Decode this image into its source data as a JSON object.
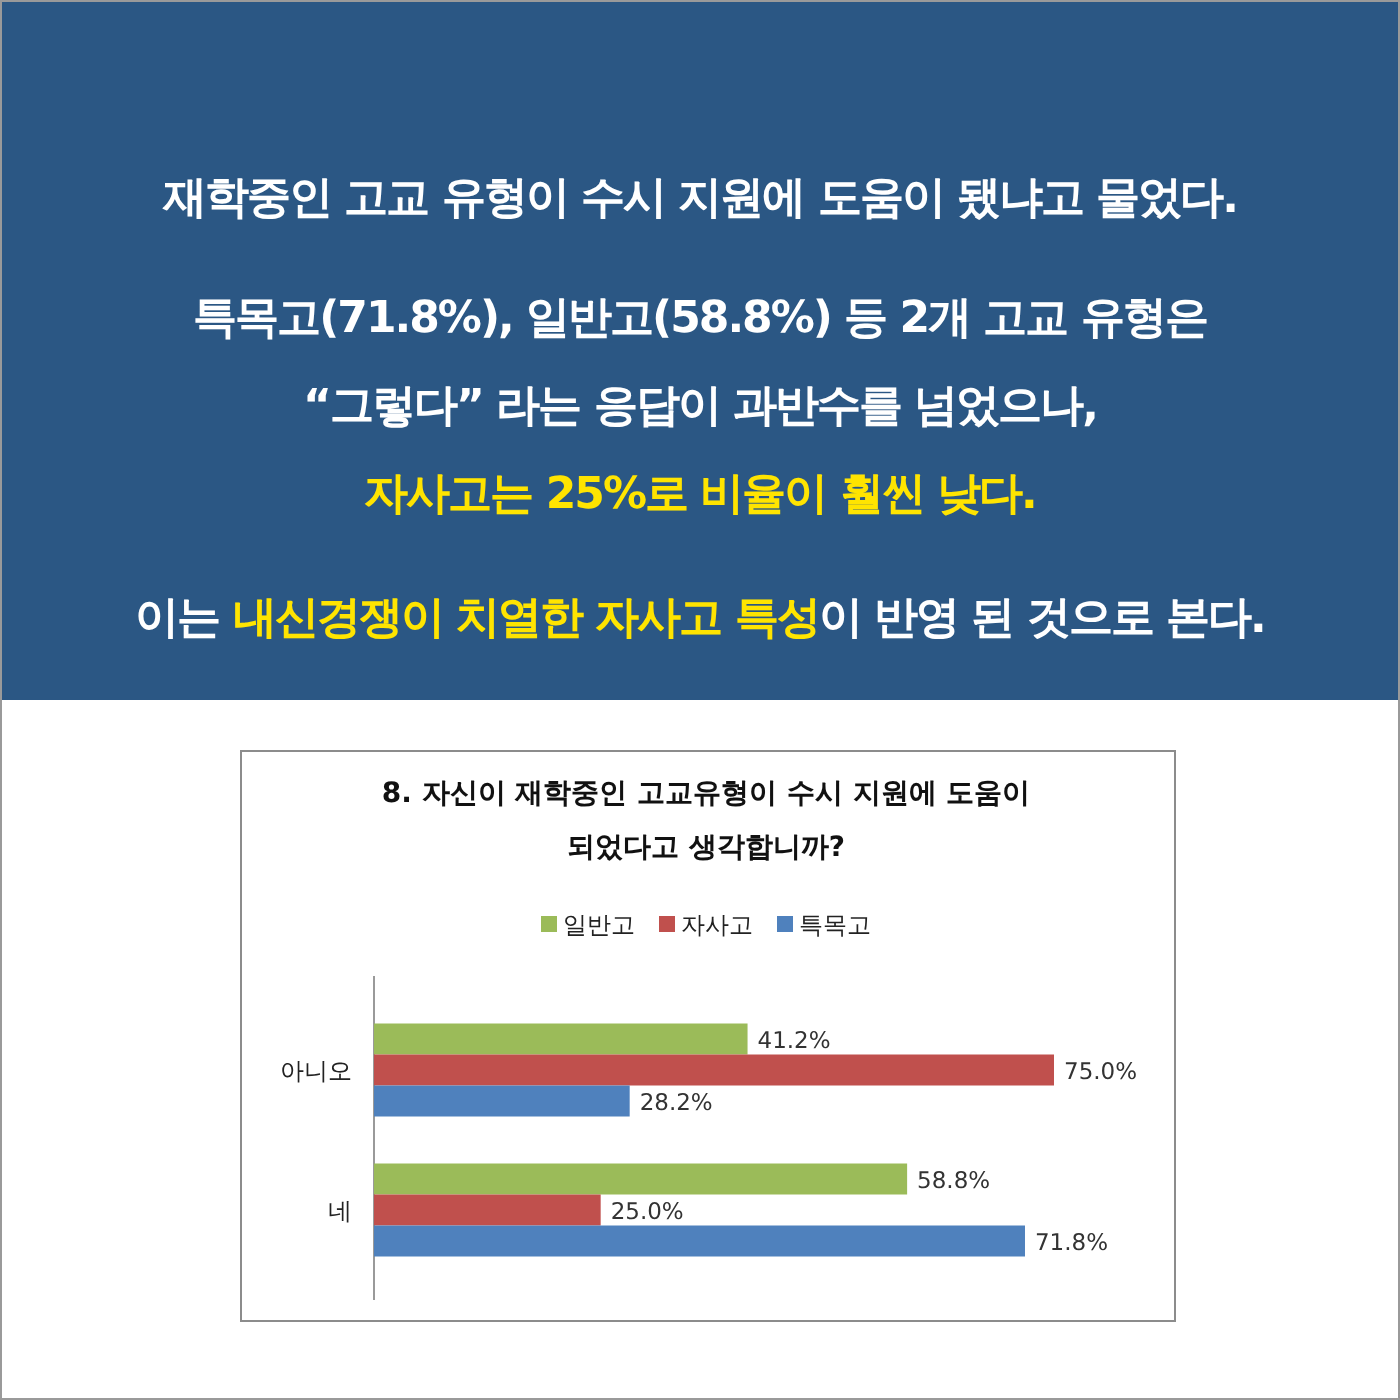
{
  "chart_data": {
    "type": "bar",
    "orientation": "horizontal",
    "title": "8. 자신이 재학중인 고교유형이 수시 지원에 도움이 되었다고 생각합니까?",
    "annotations": [
      "재학중인 고교 유형이 수시 지원에 도움이 됐냐고 물었다.",
      "특목고(71.8%), 일반고(58.8%) 등 2개 고교 유형은 “그렇다” 라는 응답이 과반수를 넘었으나, **자사고는 25%로 비율이 훨씬 낮다.**",
      "이는 **내신경쟁이 치열한 자사고 특성**이 반영 된 것으로 본다."
    ],
    "categories": [
      "아니오",
      "네"
    ],
    "series": [
      {
        "name": "일반고",
        "color": "#9bbb59",
        "values": [
          41.2,
          58.8
        ],
        "value_labels": [
          "41.2%",
          "58.8%"
        ]
      },
      {
        "name": "자사고",
        "color": "#c0504d",
        "values": [
          75.0,
          25.0
        ],
        "value_labels": [
          "75.0%",
          "25.0%"
        ]
      },
      {
        "name": "특목고",
        "color": "#4f81bd",
        "values": [
          28.2,
          71.8
        ],
        "value_labels": [
          "28.2%",
          "71.8%"
        ]
      }
    ],
    "legend": "top",
    "tick_labels": "y"
  }
}
